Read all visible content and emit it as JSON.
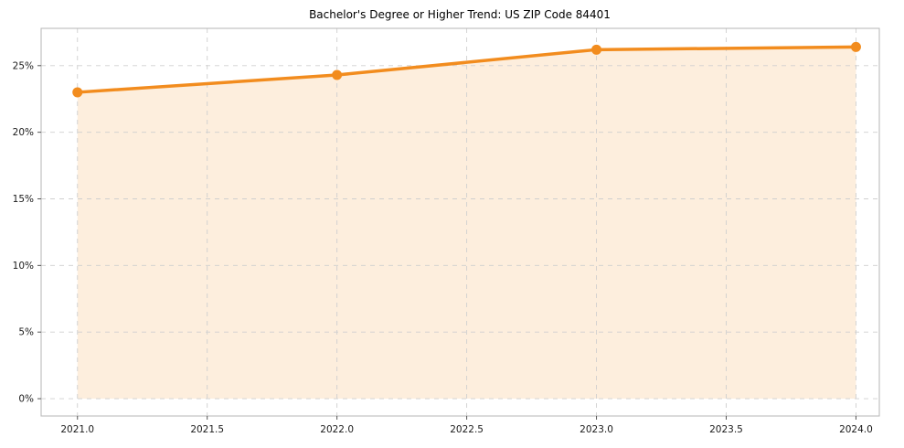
{
  "chart_data": {
    "type": "line",
    "title": "Bachelor's Degree or Higher Trend: US ZIP Code 84401",
    "xlabel": "",
    "ylabel": "",
    "x": [
      2021,
      2022,
      2023,
      2024
    ],
    "values": [
      23.0,
      24.3,
      26.2,
      26.4
    ],
    "x_tick_values": [
      2021.0,
      2021.5,
      2022.0,
      2022.5,
      2023.0,
      2023.5,
      2024.0
    ],
    "x_tick_labels": [
      "2021.0",
      "2021.5",
      "2022.0",
      "2022.5",
      "2023.0",
      "2023.5",
      "2024.0"
    ],
    "y_tick_values": [
      0,
      5,
      10,
      15,
      20,
      25
    ],
    "y_tick_labels": [
      "0%",
      "5%",
      "10%",
      "15%",
      "20%",
      "25%"
    ],
    "xlim": [
      2020.86,
      2024.09
    ],
    "ylim": [
      -1.3,
      27.8
    ],
    "grid": true,
    "grid_style": "dashed",
    "legend": "none",
    "fill_to_zero": true,
    "colors": {
      "line": "#f28c1e",
      "marker": "#f28c1e",
      "area_fill": "#fdeedd",
      "grid": "#cfcfcf",
      "plot_border": "#b5b5b5",
      "tick_text": "#1a1a1a",
      "title_text": "#000000"
    }
  }
}
